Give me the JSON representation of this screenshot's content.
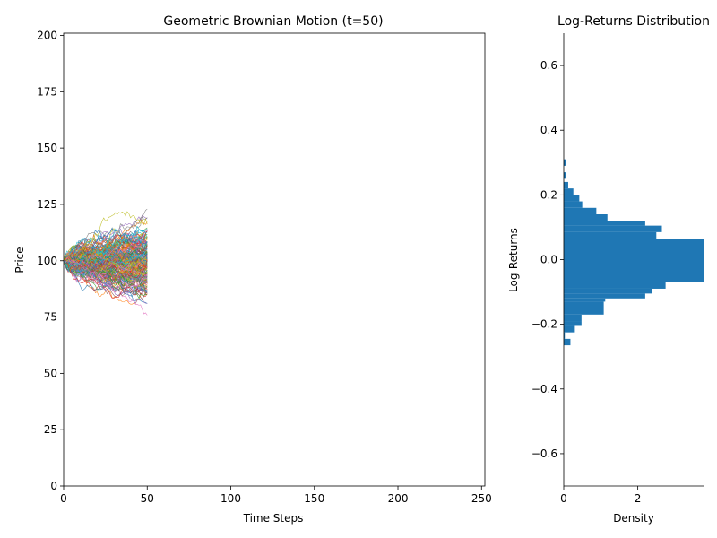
{
  "chart_data": [
    {
      "type": "line",
      "title": "Geometric Brownian Motion (t=50)",
      "xlabel": "Time Steps",
      "ylabel": "Price",
      "xlim": [
        0,
        252
      ],
      "ylim": [
        0,
        201
      ],
      "xticks": [
        0,
        50,
        100,
        150,
        200,
        250
      ],
      "yticks": [
        0,
        25,
        50,
        75,
        100,
        125,
        150,
        175,
        200
      ],
      "grid": false,
      "legend": "none",
      "simulated_paths": {
        "count_approx": 200,
        "start_value": 100,
        "steps_shown": 50,
        "value_range_at_step_50": [
          77,
          138
        ],
        "colors": [
          "#1f77b4",
          "#ff7f0e",
          "#2ca02c",
          "#d62728",
          "#9467bd",
          "#8c564b",
          "#e377c2",
          "#7f7f7f",
          "#bcbd22",
          "#17becf"
        ]
      }
    },
    {
      "type": "bar",
      "orientation": "horizontal",
      "title": "Log-Returns Distribution",
      "xlabel": "Density",
      "ylabel": "Log-Returns",
      "xlim": [
        0,
        3.8
      ],
      "ylim": [
        -0.7,
        0.7
      ],
      "xticks": [
        0,
        2
      ],
      "yticks": [
        -0.6,
        -0.4,
        -0.2,
        0.0,
        0.2,
        0.4,
        0.6
      ],
      "color": "#1f77b4",
      "grid": false,
      "bins": [
        {
          "y0": -0.265,
          "y1": -0.245,
          "density": 0.18
        },
        {
          "y0": -0.245,
          "y1": -0.225,
          "density": 0.03
        },
        {
          "y0": -0.225,
          "y1": -0.205,
          "density": 0.3
        },
        {
          "y0": -0.205,
          "y1": -0.19,
          "density": 0.48
        },
        {
          "y0": -0.19,
          "y1": -0.17,
          "density": 0.48
        },
        {
          "y0": -0.17,
          "y1": -0.13,
          "density": 1.08
        },
        {
          "y0": -0.13,
          "y1": -0.12,
          "density": 1.12
        },
        {
          "y0": -0.12,
          "y1": -0.105,
          "density": 2.2
        },
        {
          "y0": -0.105,
          "y1": -0.09,
          "density": 2.38
        },
        {
          "y0": -0.09,
          "y1": -0.07,
          "density": 2.75
        },
        {
          "y0": -0.07,
          "y1": 0.065,
          "density": 3.8
        },
        {
          "y0": 0.065,
          "y1": 0.085,
          "density": 2.5
        },
        {
          "y0": 0.085,
          "y1": 0.105,
          "density": 2.65
        },
        {
          "y0": 0.105,
          "y1": 0.12,
          "density": 2.2
        },
        {
          "y0": 0.12,
          "y1": 0.14,
          "density": 1.18
        },
        {
          "y0": 0.14,
          "y1": 0.16,
          "density": 0.88
        },
        {
          "y0": 0.16,
          "y1": 0.18,
          "density": 0.5
        },
        {
          "y0": 0.18,
          "y1": 0.2,
          "density": 0.42
        },
        {
          "y0": 0.2,
          "y1": 0.22,
          "density": 0.26
        },
        {
          "y0": 0.22,
          "y1": 0.24,
          "density": 0.12
        },
        {
          "y0": 0.25,
          "y1": 0.27,
          "density": 0.05
        },
        {
          "y0": 0.29,
          "y1": 0.31,
          "density": 0.06
        }
      ]
    }
  ]
}
